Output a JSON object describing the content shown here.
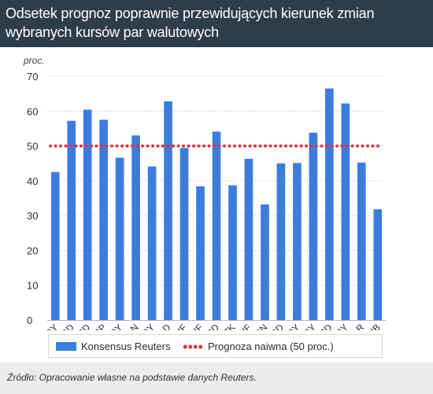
{
  "title_lines": [
    "Odsetek prognoz poprawnie przewidujących kierunek zmian",
    "wybranych kursów par walutowych"
  ],
  "source": "Źródło: Opracowanie własne na podstawie danych Reuters.",
  "colors": {
    "header_bg": "#2f3d49",
    "bar": "#3a7de0",
    "naive_line": "#e8313b",
    "grid": "#c8c8c8",
    "footer_bg": "#ececec"
  },
  "legend": {
    "bar_label": "Konsensus Reuters",
    "line_label": "Prognoza naiwna (50 proc.)"
  },
  "chart_data": {
    "type": "bar",
    "ylabel": "proc.",
    "ylim": [
      0,
      70
    ],
    "yticks": [
      0,
      10,
      20,
      30,
      40,
      50,
      60,
      70
    ],
    "grid": "horizontal-dotted",
    "legend_position": "bottom",
    "categories": [
      "USDJPY",
      "GBPUSD",
      "EURUSD",
      "EURGBP",
      "EURJPY",
      "EURPLN",
      "GBPJPY",
      "USDCAD",
      "USDCHF",
      "EURCHF",
      "AUDUSD",
      "EURCZK",
      "EURHUF",
      "EURRON",
      "NZDUSD",
      "CADJPY",
      "AUDJPY",
      "AUDNZD",
      "NZDJPY",
      "USDZAR",
      "EURRUB"
    ],
    "series": [
      {
        "name": "Konsensus Reuters",
        "values": [
          42.5,
          57.2,
          60.4,
          57.5,
          46.6,
          53.0,
          44.1,
          62.8,
          49.4,
          38.4,
          54.1,
          38.7,
          46.3,
          33.2,
          45.0,
          45.1,
          53.8,
          66.5,
          62.2,
          45.2,
          31.8
        ]
      }
    ],
    "reference_line": {
      "name": "Prognoza naiwna (50 proc.)",
      "value": 50
    }
  }
}
